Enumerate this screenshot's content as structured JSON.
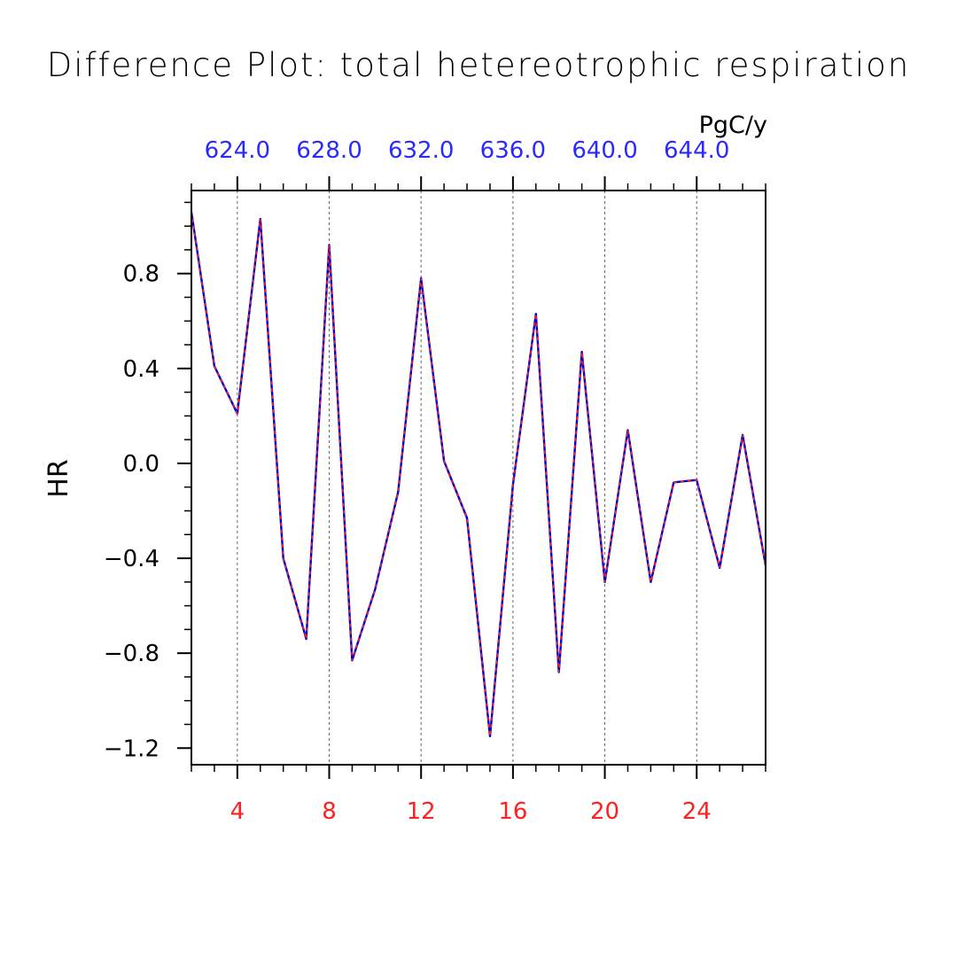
{
  "chart_data": {
    "type": "line",
    "title": "Difference Plot: total hetereotrophic respiration",
    "units_label": "PgC/y",
    "ylabel": "HR",
    "xlabel": "",
    "xlim": [
      2,
      27
    ],
    "ylim": [
      -1.27,
      1.15
    ],
    "x_ticks": [
      "4",
      "8",
      "12",
      "16",
      "20",
      "24"
    ],
    "top_ticks": [
      "624.0",
      "628.0",
      "632.0",
      "636.0",
      "640.0",
      "644.0"
    ],
    "y_ticks": [
      "0.8",
      "0.4",
      "0.0",
      "−0.4",
      "−0.8",
      "−1.2"
    ],
    "grid": "vertical dashed",
    "colors": {
      "bottom_axis": "#ff2020",
      "top_axis": "#2a2aff",
      "series_a": "#0000cc",
      "series_b": "#ff2020"
    },
    "x": [
      2,
      3,
      4,
      5,
      6,
      7,
      8,
      9,
      10,
      11,
      12,
      13,
      14,
      15,
      16,
      17,
      18,
      19,
      20,
      21,
      22,
      23,
      24,
      25,
      26,
      27
    ],
    "series": [
      {
        "values": [
          1.06,
          0.41,
          0.21,
          1.03,
          -0.4,
          -0.74,
          0.92,
          -0.83,
          -0.53,
          -0.12,
          0.78,
          0.01,
          -0.23,
          -1.15,
          -0.09,
          0.63,
          -0.88,
          0.47,
          -0.5,
          0.14,
          -0.5,
          -0.08,
          -0.07,
          -0.44,
          0.12,
          -0.43
        ]
      },
      {
        "values": [
          1.06,
          0.41,
          0.21,
          1.03,
          -0.4,
          -0.74,
          0.92,
          -0.83,
          -0.53,
          -0.12,
          0.78,
          0.01,
          -0.23,
          -1.15,
          -0.09,
          0.63,
          -0.88,
          0.47,
          -0.5,
          0.14,
          -0.5,
          -0.08,
          -0.07,
          -0.44,
          0.12,
          -0.43
        ]
      }
    ]
  }
}
